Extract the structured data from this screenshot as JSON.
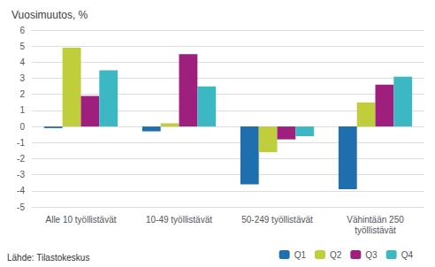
{
  "chart_data": {
    "type": "bar",
    "title": "Vuosimuutos, %",
    "categories": [
      "Alle 10 työllistävät",
      "10-49 työllistävät",
      "50-249 työllistävät",
      "Vähintään 250\ntyöllistävät"
    ],
    "series": [
      {
        "name": "Q1",
        "color": "#1F6FAE",
        "values": [
          -0.1,
          -0.3,
          -3.6,
          -3.9
        ]
      },
      {
        "name": "Q2",
        "color": "#BFCE3A",
        "values": [
          4.9,
          0.2,
          -1.6,
          1.5
        ]
      },
      {
        "name": "Q3",
        "color": "#9E1F7D",
        "values": [
          1.9,
          4.5,
          -0.8,
          2.6
        ]
      },
      {
        "name": "Q4",
        "color": "#3BB8C3",
        "values": [
          3.5,
          2.5,
          -0.6,
          3.1
        ]
      }
    ],
    "ylim": [
      -5,
      6
    ],
    "yticks": [
      -5,
      -4,
      -3,
      -2,
      -1,
      0,
      1,
      2,
      3,
      4,
      5,
      6
    ],
    "grid": true,
    "legend": "bottom",
    "annotations": [
      "Lähde: Tilastokeskus"
    ]
  }
}
